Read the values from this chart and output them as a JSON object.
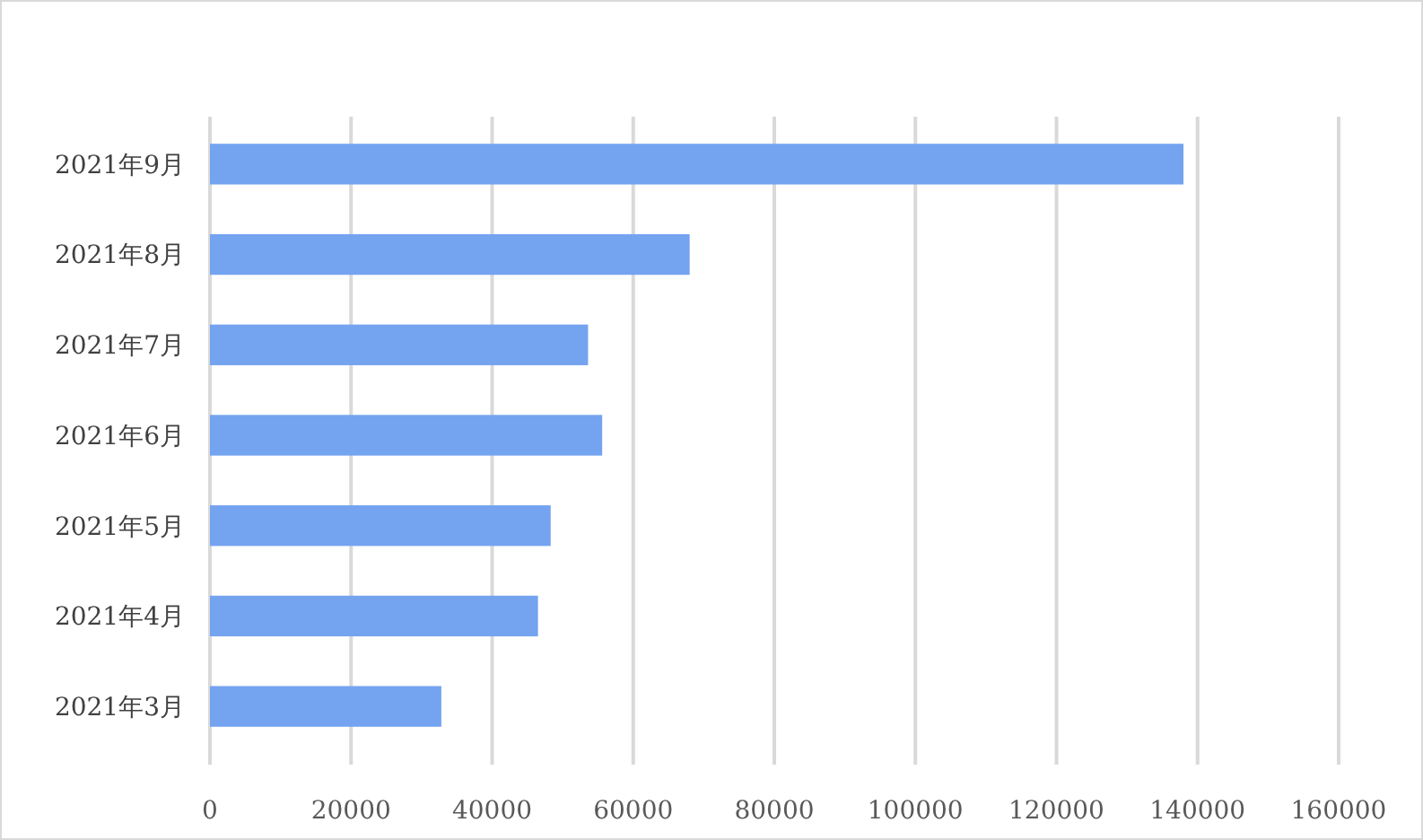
{
  "chart_data": {
    "type": "bar",
    "orientation": "horizontal",
    "categories": [
      "2021年9月",
      "2021年8月",
      "2021年7月",
      "2021年6月",
      "2021年5月",
      "2021年4月",
      "2021年3月"
    ],
    "values": [
      138000,
      68000,
      53600,
      55600,
      48300,
      46500,
      32800
    ],
    "color": "#74a3f0",
    "xlim": [
      0,
      160000
    ],
    "xticks": [
      0,
      20000,
      40000,
      60000,
      80000,
      100000,
      120000,
      140000,
      160000
    ],
    "grid": "x"
  }
}
